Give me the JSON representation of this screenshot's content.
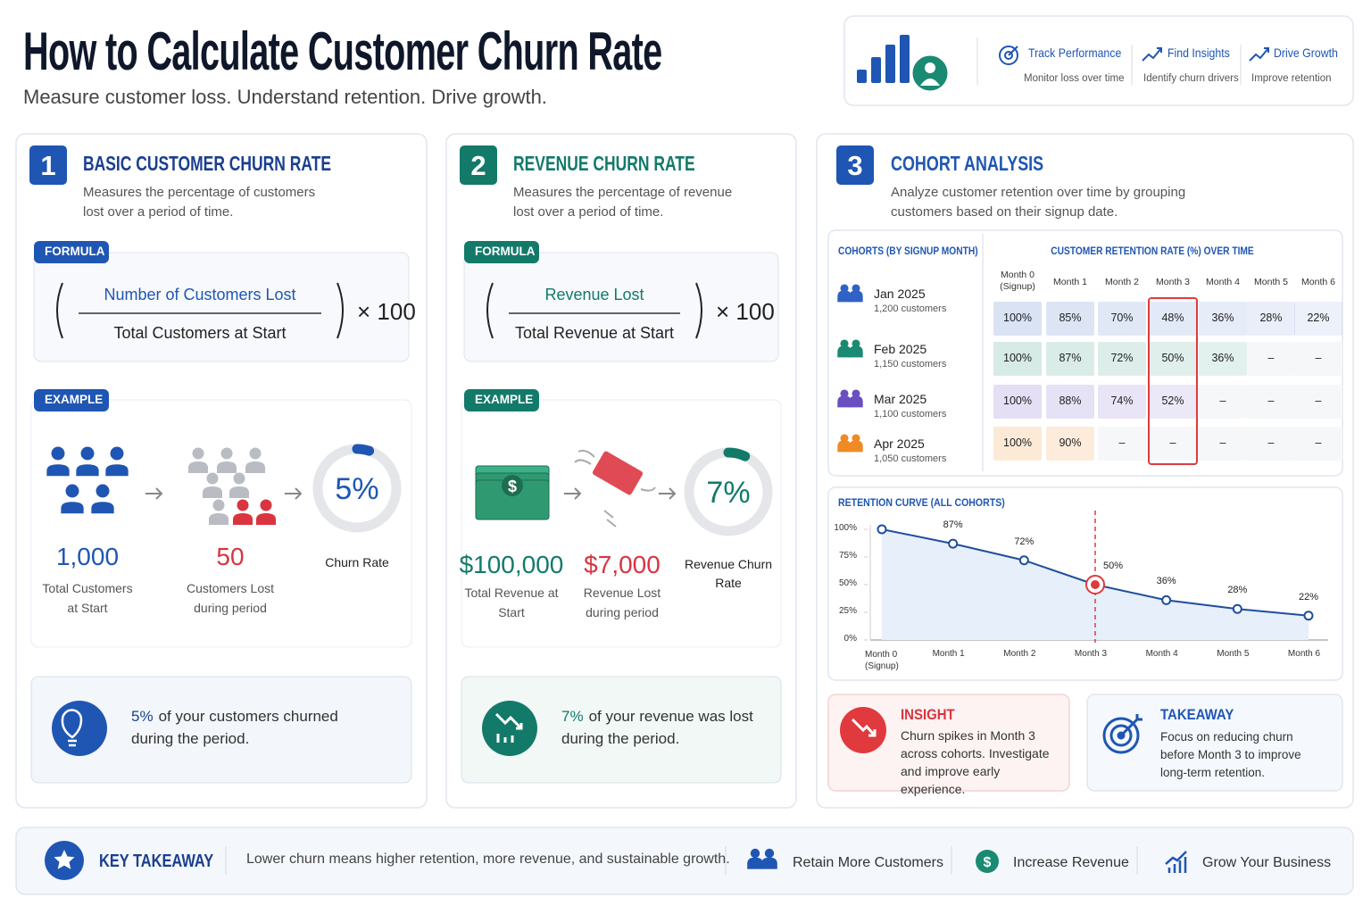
{
  "header": {
    "title": "How to Calculate Customer Churn Rate",
    "subtitle": "Measure customer loss. Understand retention. Drive growth."
  },
  "nav": [
    {
      "title": "Track Performance",
      "text": "Monitor loss over time"
    },
    {
      "title": "Find Insights",
      "text": "Identify churn drivers"
    },
    {
      "title": "Drive Growth",
      "text": "Improve retention"
    }
  ],
  "sections": [
    {
      "number": "1",
      "title": "BASIC CUSTOMER CHURN RATE",
      "description": "Measures the percentage of customers lost over a period of time.",
      "formula_label": "FORMULA",
      "numerator": "Number of Customers Lost",
      "denominator": "Total Customers at Start",
      "multiplier": "× 100",
      "example_label": "EXAMPLE",
      "start": {
        "value": "1,000",
        "label": "Total Customers at Start"
      },
      "lost": {
        "value": "50",
        "label": "Customers Lost during period"
      },
      "rate": {
        "value": 5,
        "label": "5%"
      },
      "rate_label": "Churn Rate",
      "note": {
        "highlight": "5%",
        "text": "of your customers churned during the period."
      }
    },
    {
      "number": "2",
      "title": "REVENUE CHURN RATE",
      "description": "Measures the percentage of revenue lost over a period of time.",
      "formula_label": "FORMULA",
      "numerator": "Revenue Lost",
      "denominator": "Total Revenue at Start",
      "multiplier": "× 100",
      "example_label": "EXAMPLE",
      "start": {
        "value": "$100,000",
        "label": "Total Revenue at Start"
      },
      "lost": {
        "value": "$7,000",
        "label": "Revenue Lost during period"
      },
      "rate": {
        "value": 7,
        "label": "7%"
      },
      "rate_label": "Revenue Churn Rate",
      "note": {
        "highlight": "7%",
        "text": "of your revenue was lost during the period."
      }
    }
  ],
  "cohort": {
    "number": "3",
    "title": "COHORT ANALYSIS",
    "description": "Analyze customer retention over time by grouping customers based on their signup date.",
    "cohorts_header": "COHORTS (BY SIGNUP MONTH)",
    "retention_header": "CUSTOMER RETENTION RATE (%) OVER TIME",
    "months": [
      "Month 0 (Signup)",
      "Month 1",
      "Month 2",
      "Month 3",
      "Month 4",
      "Month 5",
      "Month 6"
    ],
    "rows": [
      {
        "name": "Jan 2025",
        "size": "1,200 customers",
        "color": "#2f62c4",
        "cells": [
          "100%",
          "85%",
          "70%",
          "48%",
          "36%",
          "28%",
          "22%"
        ]
      },
      {
        "name": "Feb 2025",
        "size": "1,150 customers",
        "color": "#1a8a72",
        "cells": [
          "100%",
          "87%",
          "72%",
          "50%",
          "36%",
          "–",
          "–"
        ]
      },
      {
        "name": "Mar 2025",
        "size": "1,100 customers",
        "color": "#6a4fc0",
        "cells": [
          "100%",
          "88%",
          "74%",
          "52%",
          "–",
          "–",
          "–"
        ]
      },
      {
        "name": "Apr 2025",
        "size": "1,050 customers",
        "color": "#f08a24",
        "cells": [
          "100%",
          "90%",
          "–",
          "–",
          "–",
          "–",
          "–"
        ]
      }
    ]
  },
  "retention_chart": {
    "type": "line",
    "title": "RETENTION CURVE (ALL COHORTS)",
    "categories": [
      "Month 0 (Signup)",
      "Month 1",
      "Month 2",
      "Month 3",
      "Month 4",
      "Month 5",
      "Month 6"
    ],
    "values": [
      100,
      87,
      72,
      50,
      36,
      28,
      22
    ],
    "value_labels": [
      null,
      "87%",
      "72%",
      "50%",
      "36%",
      "28%",
      "22%"
    ],
    "ylim": [
      0,
      100
    ],
    "yticks": [
      {
        "value": 0,
        "label": "0%"
      },
      {
        "value": 25,
        "label": "25%"
      },
      {
        "value": 50,
        "label": "50%"
      },
      {
        "value": 75,
        "label": "75%"
      },
      {
        "value": 100,
        "label": "100%"
      }
    ],
    "color": "#1f4e9c"
  },
  "insight": {
    "title": "INSIGHT",
    "text": "Churn spikes in Month 3 across cohorts. Investigate and improve early experience."
  },
  "takeaway": {
    "title": "TAKEAWAY",
    "text": "Focus on reducing churn before Month 3 to improve long-term retention."
  },
  "footer": {
    "title": "KEY TAKEAWAY",
    "text": "Lower churn means higher retention, more revenue, and sustainable growth.",
    "items": [
      "Retain More Customers",
      "Increase Revenue",
      "Grow Your Business"
    ]
  }
}
